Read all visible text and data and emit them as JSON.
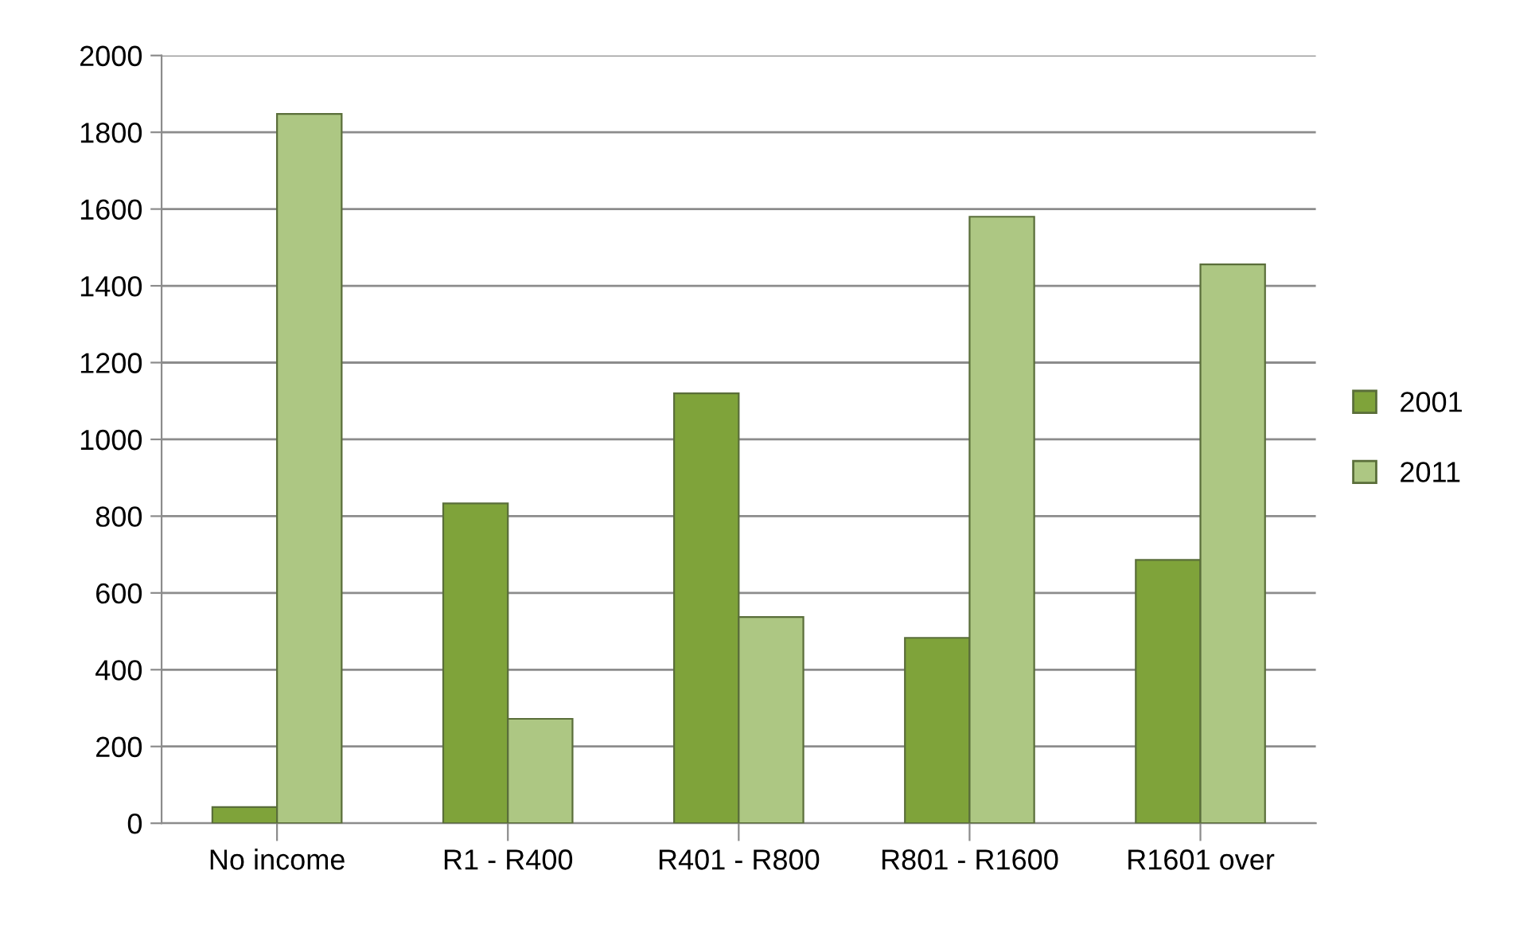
{
  "chart_data": {
    "type": "bar",
    "categories": [
      "No income",
      "R1 - R400",
      "R401 - R800",
      "R801 - R1600",
      "R1601 over"
    ],
    "series": [
      {
        "name": "2001",
        "color": "#7fa33a",
        "values": [
          42,
          833,
          1120,
          483,
          686
        ]
      },
      {
        "name": "2011",
        "color": "#adc783",
        "values": [
          1848,
          272,
          537,
          1580,
          1456
        ]
      }
    ],
    "ylim": [
      0,
      2000
    ],
    "yticks": [
      0,
      200,
      400,
      600,
      800,
      1000,
      1200,
      1400,
      1600,
      1800,
      2000
    ],
    "grid": "y",
    "legend": "right"
  }
}
